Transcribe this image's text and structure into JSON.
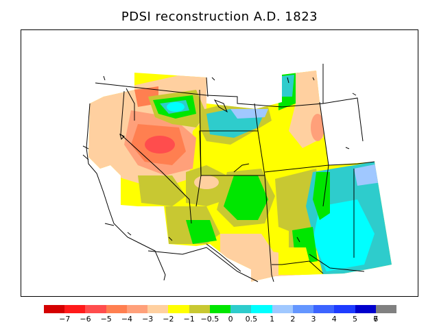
{
  "title": "PDSI reconstruction A.D. 1823",
  "legend": {
    "colors": [
      "#d40000",
      "#ff1a1a",
      "#ff4d4d",
      "#ff7f50",
      "#ffa07a",
      "#ffd0a0",
      "#ffff00",
      "#c8c832",
      "#00e600",
      "#2ecccc",
      "#00ffff",
      "#a0c8ff",
      "#6496ff",
      "#3c64ff",
      "#1e3cff",
      "#0000cc",
      "#808080"
    ],
    "labels": [
      "−7",
      "−6",
      "−5",
      "−4",
      "−3",
      "−2",
      "−1",
      "−0.5",
      "0",
      "0.5",
      "1",
      "2",
      "3",
      "4",
      "5",
      "6",
      "7"
    ]
  }
}
